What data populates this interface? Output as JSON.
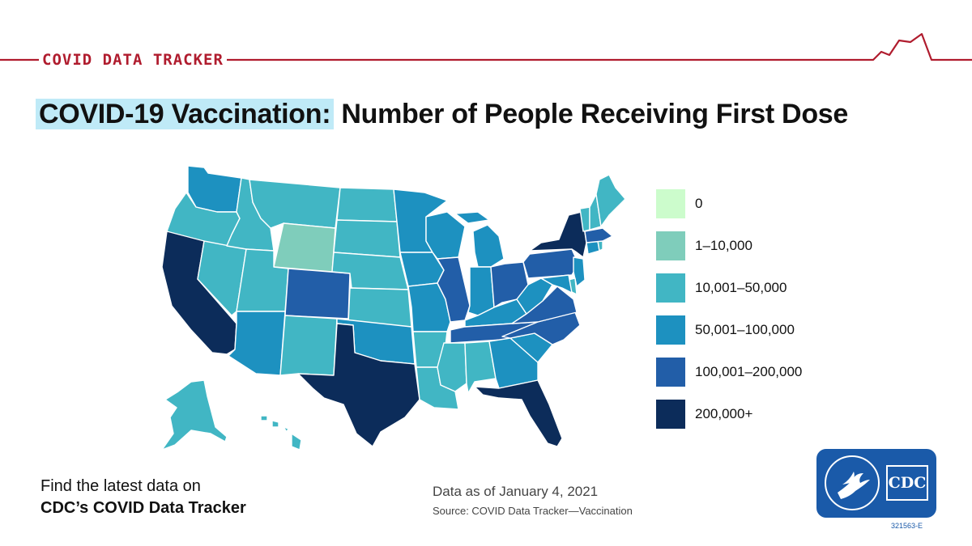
{
  "header": {
    "label": "COVID DATA TRACKER",
    "accent_color": "#b01c2e"
  },
  "title": {
    "highlight": "COVID-19 Vaccination:",
    "rest": " Number of People Receiving First Dose",
    "highlight_color": "#bfeaf7"
  },
  "legend": {
    "items": [
      {
        "label": "0",
        "color": "#ccfccc"
      },
      {
        "label": "1–10,000",
        "color": "#7fcdbb"
      },
      {
        "label": "10,001–50,000",
        "color": "#41b6c4"
      },
      {
        "label": "50,001–100,000",
        "color": "#1d91c0"
      },
      {
        "label": "100,001–200,000",
        "color": "#225ea8"
      },
      {
        "label": "200,000+",
        "color": "#0c2c5a"
      }
    ]
  },
  "map": {
    "type": "choropleth",
    "bins": [
      "0",
      "1–10,000",
      "10,001–50,000",
      "50,001–100,000",
      "100,001–200,000",
      "200,000+"
    ],
    "states": [
      {
        "id": "WA",
        "bin": 3
      },
      {
        "id": "OR",
        "bin": 2
      },
      {
        "id": "CA",
        "bin": 5
      },
      {
        "id": "NV",
        "bin": 2
      },
      {
        "id": "ID",
        "bin": 2
      },
      {
        "id": "MT",
        "bin": 2
      },
      {
        "id": "WY",
        "bin": 1
      },
      {
        "id": "UT",
        "bin": 2
      },
      {
        "id": "AZ",
        "bin": 3
      },
      {
        "id": "CO",
        "bin": 4
      },
      {
        "id": "NM",
        "bin": 2
      },
      {
        "id": "ND",
        "bin": 2
      },
      {
        "id": "SD",
        "bin": 2
      },
      {
        "id": "NE",
        "bin": 2
      },
      {
        "id": "KS",
        "bin": 2
      },
      {
        "id": "OK",
        "bin": 3
      },
      {
        "id": "TX",
        "bin": 5
      },
      {
        "id": "MN",
        "bin": 3
      },
      {
        "id": "IA",
        "bin": 3
      },
      {
        "id": "MO",
        "bin": 3
      },
      {
        "id": "AR",
        "bin": 2
      },
      {
        "id": "LA",
        "bin": 2
      },
      {
        "id": "WI",
        "bin": 3
      },
      {
        "id": "IL",
        "bin": 4
      },
      {
        "id": "MI",
        "bin": 3
      },
      {
        "id": "IN",
        "bin": 3
      },
      {
        "id": "OH",
        "bin": 4
      },
      {
        "id": "KY",
        "bin": 3
      },
      {
        "id": "TN",
        "bin": 4
      },
      {
        "id": "MS",
        "bin": 2
      },
      {
        "id": "AL",
        "bin": 2
      },
      {
        "id": "GA",
        "bin": 3
      },
      {
        "id": "FL",
        "bin": 5
      },
      {
        "id": "SC",
        "bin": 3
      },
      {
        "id": "NC",
        "bin": 4
      },
      {
        "id": "VA",
        "bin": 4
      },
      {
        "id": "WV",
        "bin": 3
      },
      {
        "id": "PA",
        "bin": 4
      },
      {
        "id": "NY",
        "bin": 5
      },
      {
        "id": "NJ",
        "bin": 3
      },
      {
        "id": "MD",
        "bin": 3
      },
      {
        "id": "DE",
        "bin": 2
      },
      {
        "id": "CT",
        "bin": 3
      },
      {
        "id": "RI",
        "bin": 2
      },
      {
        "id": "MA",
        "bin": 4
      },
      {
        "id": "VT",
        "bin": 2
      },
      {
        "id": "NH",
        "bin": 2
      },
      {
        "id": "ME",
        "bin": 2
      },
      {
        "id": "AK",
        "bin": 2
      },
      {
        "id": "HI",
        "bin": 2
      }
    ]
  },
  "footer": {
    "cta_line1": "Find the latest data on",
    "cta_line2": "CDC’s COVID Data Tracker",
    "as_of": "Data as of January 4, 2021",
    "source": "Source: COVID Data Tracker—Vaccination"
  },
  "logo": {
    "text": "CDC",
    "color": "#1a5aa9",
    "icon": "hhs-eagle-icon"
  },
  "code": "321563-E"
}
